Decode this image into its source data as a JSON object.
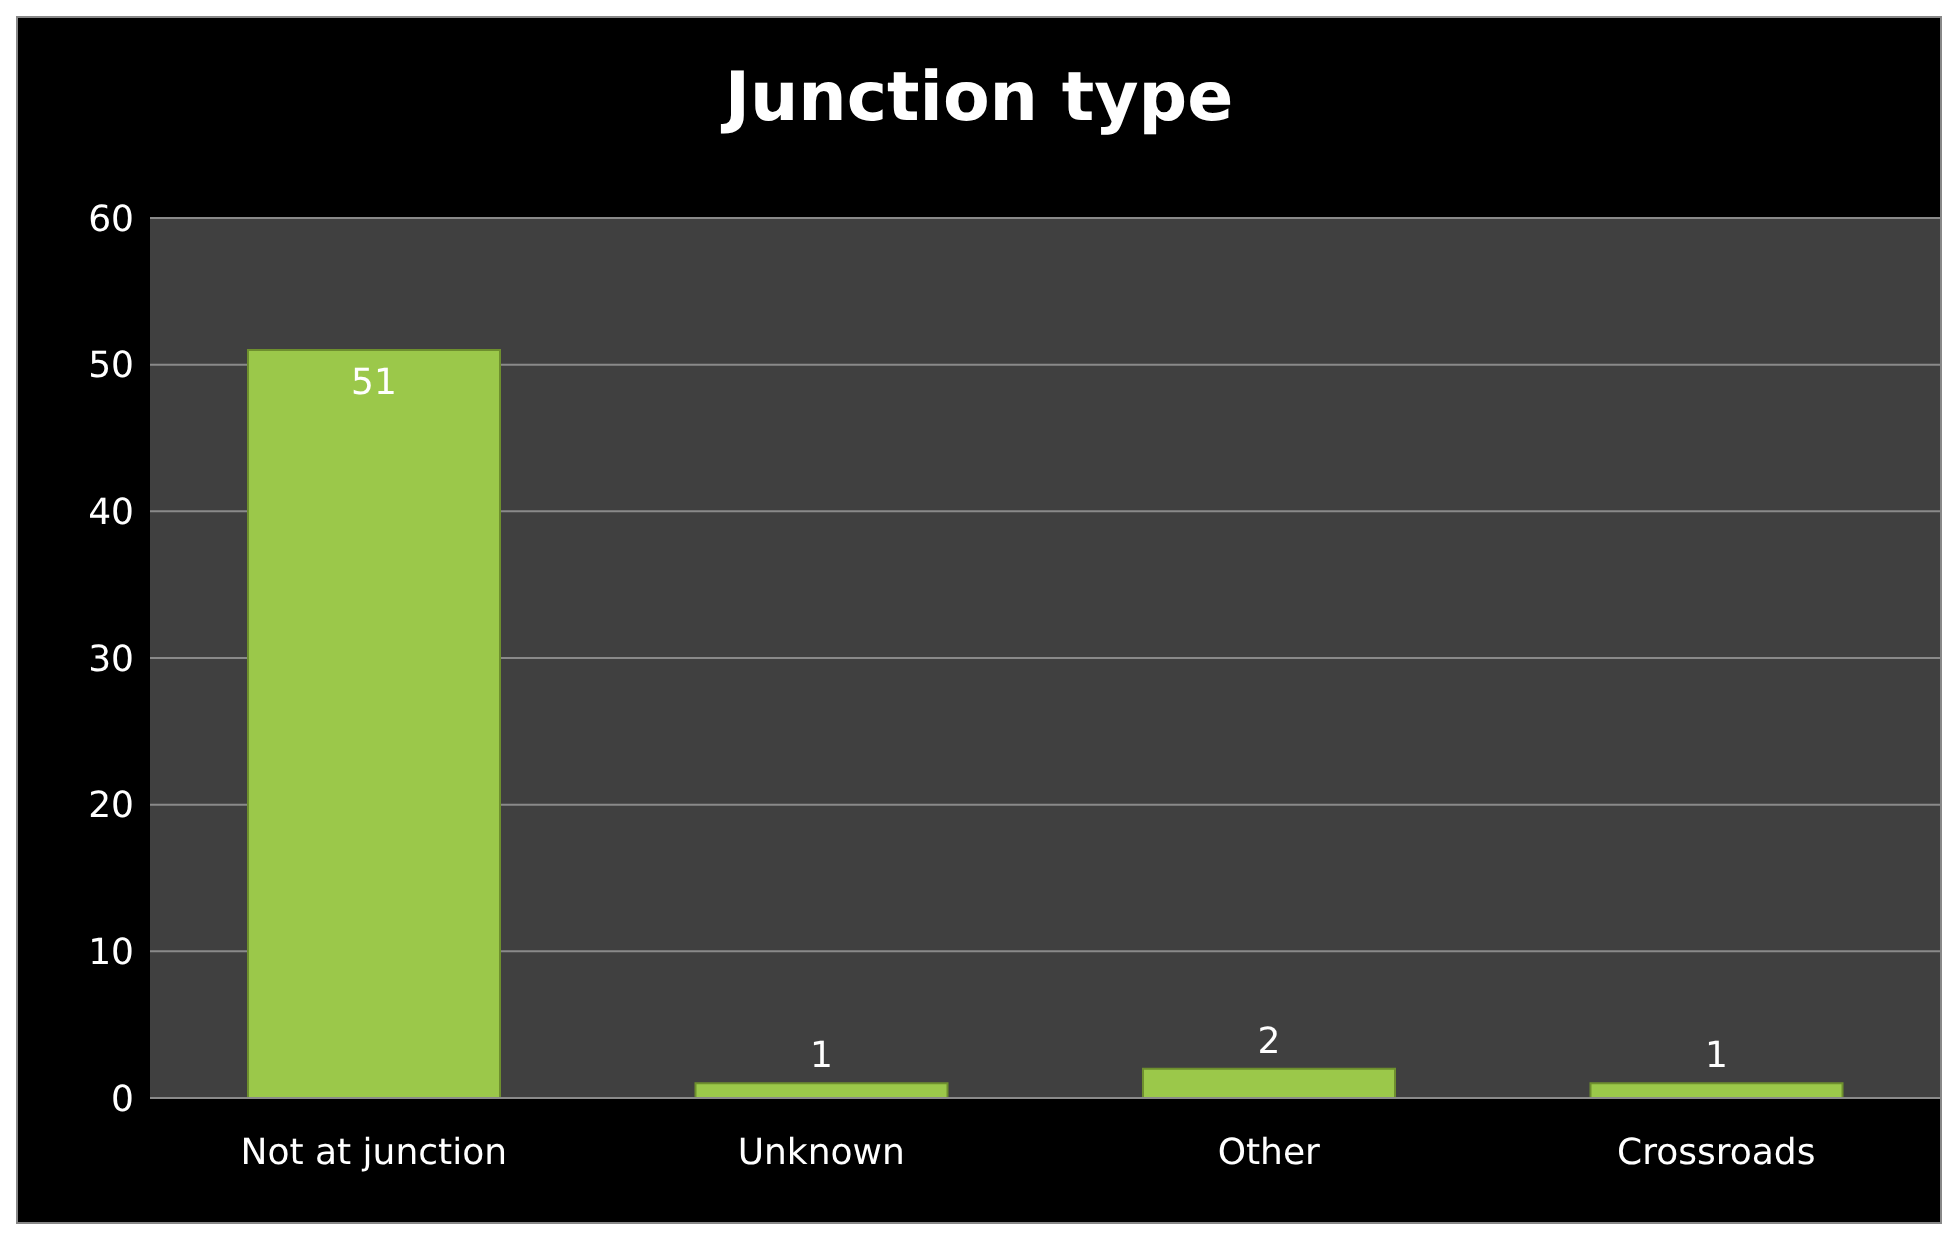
{
  "chart_data": {
    "type": "bar",
    "title": "Junction type",
    "categories": [
      "Not at junction",
      "Unknown",
      "Other",
      "Crossroads"
    ],
    "values": [
      51,
      1,
      2,
      1
    ],
    "color": "#9bc84a",
    "ylim": [
      0,
      60
    ],
    "yticks": [
      0,
      10,
      20,
      30,
      40,
      50,
      60
    ],
    "grid": "y",
    "data_labels": true,
    "legend": false
  }
}
